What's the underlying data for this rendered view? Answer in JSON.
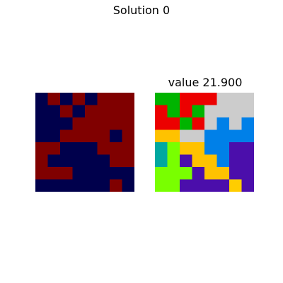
{
  "figure": {
    "title": "Solution 0"
  },
  "right_panel": {
    "title": "value 21.900"
  },
  "colors": {
    "navy": "#00004c",
    "maroon": "#800000",
    "green": "#00b400",
    "red": "#ec0000",
    "gray": "#cccccc",
    "orange": "#ffc200",
    "blue": "#0080e8",
    "teal": "#00a8a0",
    "lime": "#79ff00",
    "purple": "#4b0eab",
    "gold": "#ffcd00"
  },
  "left_grid": {
    "rows": [
      [
        "navy",
        "maroon",
        "navy",
        "maroon",
        "navy",
        "maroon",
        "maroon",
        "maroon"
      ],
      [
        "navy",
        "navy",
        "maroon",
        "navy",
        "maroon",
        "maroon",
        "maroon",
        "maroon"
      ],
      [
        "navy",
        "navy",
        "navy",
        "maroon",
        "maroon",
        "maroon",
        "maroon",
        "maroon"
      ],
      [
        "navy",
        "navy",
        "maroon",
        "maroon",
        "maroon",
        "maroon",
        "navy",
        "maroon"
      ],
      [
        "maroon",
        "maroon",
        "navy",
        "navy",
        "navy",
        "maroon",
        "maroon",
        "maroon"
      ],
      [
        "maroon",
        "navy",
        "navy",
        "navy",
        "navy",
        "navy",
        "maroon",
        "maroon"
      ],
      [
        "maroon",
        "maroon",
        "maroon",
        "navy",
        "navy",
        "navy",
        "navy",
        "navy"
      ],
      [
        "navy",
        "navy",
        "navy",
        "navy",
        "navy",
        "navy",
        "maroon",
        "navy"
      ]
    ]
  },
  "right_grid": {
    "rows": [
      [
        "green",
        "green",
        "red",
        "red",
        "red",
        "gray",
        "gray",
        "gray"
      ],
      [
        "red",
        "green",
        "red",
        "green",
        "gray",
        "gray",
        "gray",
        "gray"
      ],
      [
        "red",
        "red",
        "green",
        "red",
        "gray",
        "blue",
        "gray",
        "blue"
      ],
      [
        "orange",
        "orange",
        "gray",
        "gray",
        "blue",
        "blue",
        "blue",
        "blue"
      ],
      [
        "teal",
        "lime",
        "orange",
        "orange",
        "blue",
        "blue",
        "purple",
        "purple"
      ],
      [
        "teal",
        "lime",
        "purple",
        "orange",
        "orange",
        "blue",
        "purple",
        "purple"
      ],
      [
        "lime",
        "lime",
        "lime",
        "purple",
        "orange",
        "orange",
        "purple",
        "purple"
      ],
      [
        "lime",
        "lime",
        "purple",
        "purple",
        "purple",
        "purple",
        "gold",
        "purple"
      ]
    ]
  }
}
